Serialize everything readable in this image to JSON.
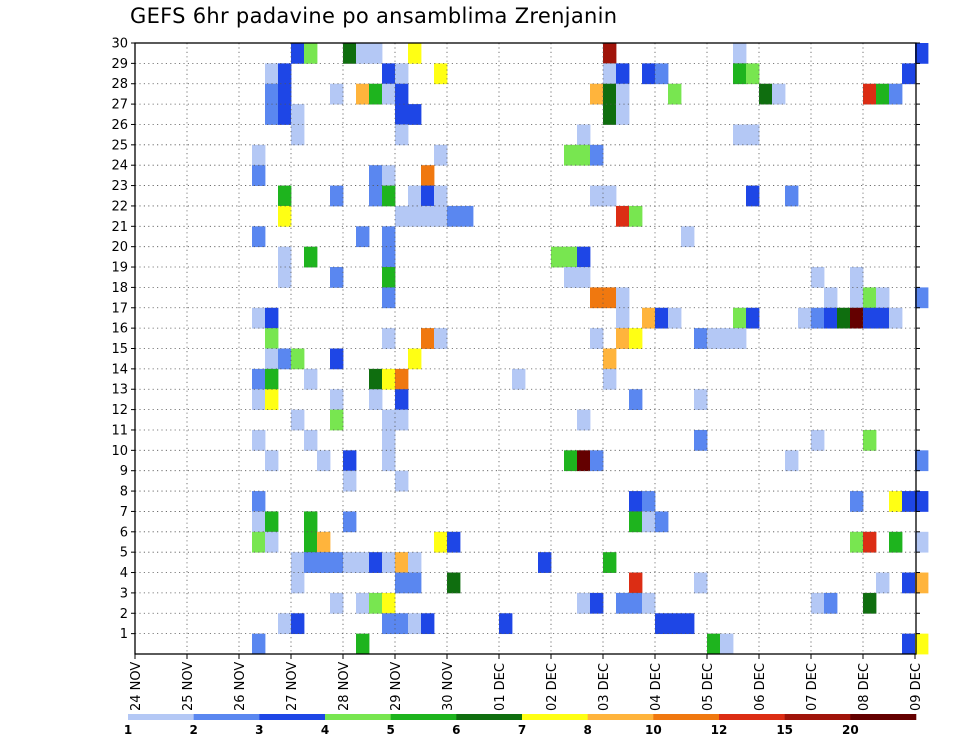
{
  "chart_data": {
    "type": "heatmap",
    "title": "GEFS 6hr padavine po ansamblima Zrenjanin",
    "xlabel": "",
    "ylabel": "",
    "x_ticks": [
      "24 NOV",
      "25 NOV",
      "26 NOV",
      "27 NOV",
      "28 NOV",
      "29 NOV",
      "30 NOV",
      "01 DEC",
      "02 DEC",
      "03 DEC",
      "04 DEC",
      "05 DEC",
      "06 DEC",
      "07 DEC",
      "08 DEC",
      "09 DEC"
    ],
    "y_ticks": [
      "1",
      "2",
      "3",
      "4",
      "5",
      "6",
      "7",
      "8",
      "9",
      "10",
      "11",
      "12",
      "13",
      "14",
      "15",
      "16",
      "17",
      "18",
      "19",
      "20",
      "21",
      "22",
      "23",
      "24",
      "25",
      "26",
      "27",
      "28",
      "29",
      "30"
    ],
    "x_unit": "6-hour step from 24 NOV 00Z",
    "ylim": [
      0,
      30
    ],
    "grid": true,
    "colorbar": {
      "labels": [
        "1",
        "2",
        "3",
        "4",
        "5",
        "6",
        "7",
        "8",
        "10",
        "12",
        "15",
        "20"
      ],
      "colors": [
        "#b4c8f5",
        "#5a87f0",
        "#1e46e6",
        "#78e650",
        "#1eb41e",
        "#0f6e0f",
        "#ffff14",
        "#ffb43c",
        "#f0780f",
        "#dc2d14",
        "#a0140a",
        "#640000"
      ]
    },
    "cells": [
      [
        12,
        30,
        2
      ],
      [
        13,
        30,
        3
      ],
      [
        16,
        30,
        5
      ],
      [
        17,
        30,
        0
      ],
      [
        18,
        30,
        0
      ],
      [
        21,
        30,
        6
      ],
      [
        36,
        30,
        10
      ],
      [
        46,
        30,
        0
      ],
      [
        60,
        30,
        2
      ],
      [
        10,
        29,
        0
      ],
      [
        11,
        29,
        2
      ],
      [
        19,
        29,
        2
      ],
      [
        20,
        29,
        0
      ],
      [
        23,
        29,
        6
      ],
      [
        36,
        29,
        0
      ],
      [
        37,
        29,
        2
      ],
      [
        39,
        29,
        2
      ],
      [
        40,
        29,
        1
      ],
      [
        46,
        29,
        4
      ],
      [
        47,
        29,
        3
      ],
      [
        59,
        29,
        2
      ],
      [
        10,
        28,
        1
      ],
      [
        11,
        28,
        2
      ],
      [
        15,
        28,
        0
      ],
      [
        17,
        28,
        7
      ],
      [
        18,
        28,
        4
      ],
      [
        19,
        28,
        0
      ],
      [
        20,
        28,
        2
      ],
      [
        35,
        28,
        7
      ],
      [
        36,
        28,
        5
      ],
      [
        37,
        28,
        0
      ],
      [
        41,
        28,
        3
      ],
      [
        48,
        28,
        5
      ],
      [
        49,
        28,
        0
      ],
      [
        56,
        28,
        9
      ],
      [
        57,
        28,
        4
      ],
      [
        58,
        28,
        1
      ],
      [
        10,
        27,
        1
      ],
      [
        11,
        27,
        2
      ],
      [
        12,
        27,
        0
      ],
      [
        20,
        27,
        2
      ],
      [
        21,
        27,
        2
      ],
      [
        36,
        27,
        5
      ],
      [
        37,
        27,
        0
      ],
      [
        12,
        26,
        0
      ],
      [
        20,
        26,
        0
      ],
      [
        34,
        26,
        0
      ],
      [
        46,
        26,
        0
      ],
      [
        47,
        26,
        0
      ],
      [
        9,
        25,
        0
      ],
      [
        23,
        25,
        0
      ],
      [
        33,
        25,
        3
      ],
      [
        34,
        25,
        3
      ],
      [
        35,
        25,
        1
      ],
      [
        9,
        24,
        1
      ],
      [
        18,
        24,
        1
      ],
      [
        19,
        24,
        0
      ],
      [
        22,
        24,
        8
      ],
      [
        11,
        23,
        4
      ],
      [
        15,
        23,
        1
      ],
      [
        18,
        23,
        1
      ],
      [
        19,
        23,
        4
      ],
      [
        21,
        23,
        0
      ],
      [
        22,
        23,
        2
      ],
      [
        23,
        23,
        0
      ],
      [
        35,
        23,
        0
      ],
      [
        36,
        23,
        0
      ],
      [
        47,
        23,
        2
      ],
      [
        50,
        23,
        1
      ],
      [
        11,
        22,
        6
      ],
      [
        20,
        22,
        0
      ],
      [
        21,
        22,
        0
      ],
      [
        22,
        22,
        0
      ],
      [
        23,
        22,
        0
      ],
      [
        24,
        22,
        1
      ],
      [
        25,
        22,
        1
      ],
      [
        37,
        22,
        9
      ],
      [
        38,
        22,
        3
      ],
      [
        9,
        21,
        1
      ],
      [
        17,
        21,
        1
      ],
      [
        19,
        21,
        1
      ],
      [
        42,
        21,
        0
      ],
      [
        11,
        20,
        0
      ],
      [
        13,
        20,
        4
      ],
      [
        19,
        20,
        1
      ],
      [
        32,
        20,
        3
      ],
      [
        33,
        20,
        3
      ],
      [
        34,
        20,
        2
      ],
      [
        11,
        19,
        0
      ],
      [
        15,
        19,
        1
      ],
      [
        19,
        19,
        4
      ],
      [
        33,
        19,
        0
      ],
      [
        34,
        19,
        0
      ],
      [
        52,
        19,
        0
      ],
      [
        55,
        19,
        0
      ],
      [
        19,
        18,
        1
      ],
      [
        35,
        18,
        8
      ],
      [
        36,
        18,
        8
      ],
      [
        37,
        18,
        0
      ],
      [
        53,
        18,
        0
      ],
      [
        55,
        18,
        0
      ],
      [
        56,
        18,
        3
      ],
      [
        57,
        18,
        0
      ],
      [
        60,
        18,
        1
      ],
      [
        9,
        17,
        0
      ],
      [
        10,
        17,
        2
      ],
      [
        37,
        17,
        0
      ],
      [
        39,
        17,
        7
      ],
      [
        40,
        17,
        2
      ],
      [
        41,
        17,
        0
      ],
      [
        46,
        17,
        3
      ],
      [
        47,
        17,
        2
      ],
      [
        51,
        17,
        0
      ],
      [
        52,
        17,
        1
      ],
      [
        53,
        17,
        2
      ],
      [
        54,
        17,
        5
      ],
      [
        55,
        17,
        11
      ],
      [
        56,
        17,
        2
      ],
      [
        57,
        17,
        2
      ],
      [
        58,
        17,
        0
      ],
      [
        10,
        16,
        3
      ],
      [
        19,
        16,
        0
      ],
      [
        22,
        16,
        8
      ],
      [
        23,
        16,
        0
      ],
      [
        35,
        16,
        0
      ],
      [
        37,
        16,
        7
      ],
      [
        38,
        16,
        6
      ],
      [
        43,
        16,
        1
      ],
      [
        44,
        16,
        0
      ],
      [
        45,
        16,
        0
      ],
      [
        46,
        16,
        0
      ],
      [
        10,
        15,
        0
      ],
      [
        11,
        15,
        1
      ],
      [
        12,
        15,
        3
      ],
      [
        15,
        15,
        2
      ],
      [
        21,
        15,
        6
      ],
      [
        36,
        15,
        7
      ],
      [
        9,
        14,
        1
      ],
      [
        10,
        14,
        4
      ],
      [
        13,
        14,
        0
      ],
      [
        18,
        14,
        5
      ],
      [
        19,
        14,
        6
      ],
      [
        20,
        14,
        8
      ],
      [
        29,
        14,
        0
      ],
      [
        36,
        14,
        0
      ],
      [
        9,
        13,
        0
      ],
      [
        10,
        13,
        6
      ],
      [
        15,
        13,
        0
      ],
      [
        18,
        13,
        0
      ],
      [
        20,
        13,
        2
      ],
      [
        38,
        13,
        1
      ],
      [
        43,
        13,
        0
      ],
      [
        12,
        12,
        0
      ],
      [
        15,
        12,
        3
      ],
      [
        19,
        12,
        0
      ],
      [
        20,
        12,
        0
      ],
      [
        34,
        12,
        0
      ],
      [
        9,
        11,
        0
      ],
      [
        13,
        11,
        0
      ],
      [
        19,
        11,
        0
      ],
      [
        43,
        11,
        1
      ],
      [
        52,
        11,
        0
      ],
      [
        56,
        11,
        3
      ],
      [
        10,
        10,
        0
      ],
      [
        14,
        10,
        0
      ],
      [
        16,
        10,
        2
      ],
      [
        19,
        10,
        0
      ],
      [
        33,
        10,
        4
      ],
      [
        34,
        10,
        11
      ],
      [
        35,
        10,
        1
      ],
      [
        50,
        10,
        0
      ],
      [
        60,
        10,
        1
      ],
      [
        16,
        9,
        0
      ],
      [
        20,
        9,
        0
      ],
      [
        9,
        8,
        1
      ],
      [
        38,
        8,
        2
      ],
      [
        39,
        8,
        1
      ],
      [
        55,
        8,
        1
      ],
      [
        58,
        8,
        6
      ],
      [
        59,
        8,
        2
      ],
      [
        60,
        8,
        2
      ],
      [
        9,
        7,
        0
      ],
      [
        10,
        7,
        4
      ],
      [
        13,
        7,
        4
      ],
      [
        16,
        7,
        1
      ],
      [
        38,
        7,
        4
      ],
      [
        39,
        7,
        0
      ],
      [
        40,
        7,
        1
      ],
      [
        9,
        6,
        3
      ],
      [
        10,
        6,
        0
      ],
      [
        13,
        6,
        4
      ],
      [
        14,
        6,
        7
      ],
      [
        23,
        6,
        6
      ],
      [
        24,
        6,
        2
      ],
      [
        55,
        6,
        3
      ],
      [
        56,
        6,
        9
      ],
      [
        58,
        6,
        4
      ],
      [
        60,
        6,
        0
      ],
      [
        12,
        5,
        0
      ],
      [
        13,
        5,
        1
      ],
      [
        14,
        5,
        1
      ],
      [
        15,
        5,
        1
      ],
      [
        16,
        5,
        0
      ],
      [
        17,
        5,
        0
      ],
      [
        18,
        5,
        2
      ],
      [
        19,
        5,
        0
      ],
      [
        20,
        5,
        7
      ],
      [
        21,
        5,
        0
      ],
      [
        31,
        5,
        2
      ],
      [
        36,
        5,
        4
      ],
      [
        12,
        4,
        0
      ],
      [
        20,
        4,
        1
      ],
      [
        21,
        4,
        1
      ],
      [
        24,
        4,
        5
      ],
      [
        38,
        4,
        9
      ],
      [
        43,
        4,
        0
      ],
      [
        57,
        4,
        0
      ],
      [
        59,
        4,
        2
      ],
      [
        60,
        4,
        7
      ],
      [
        15,
        3,
        0
      ],
      [
        17,
        3,
        0
      ],
      [
        18,
        3,
        3
      ],
      [
        19,
        3,
        6
      ],
      [
        34,
        3,
        0
      ],
      [
        35,
        3,
        2
      ],
      [
        37,
        3,
        1
      ],
      [
        38,
        3,
        1
      ],
      [
        39,
        3,
        0
      ],
      [
        52,
        3,
        0
      ],
      [
        53,
        3,
        1
      ],
      [
        56,
        3,
        5
      ],
      [
        11,
        2,
        0
      ],
      [
        12,
        2,
        2
      ],
      [
        19,
        2,
        1
      ],
      [
        20,
        2,
        1
      ],
      [
        21,
        2,
        0
      ],
      [
        22,
        2,
        2
      ],
      [
        28,
        2,
        2
      ],
      [
        40,
        2,
        2
      ],
      [
        41,
        2,
        2
      ],
      [
        42,
        2,
        2
      ],
      [
        9,
        1,
        1
      ],
      [
        17,
        1,
        4
      ],
      [
        44,
        1,
        4
      ],
      [
        45,
        1,
        0
      ],
      [
        59,
        1,
        2
      ],
      [
        60,
        1,
        6
      ]
    ]
  }
}
